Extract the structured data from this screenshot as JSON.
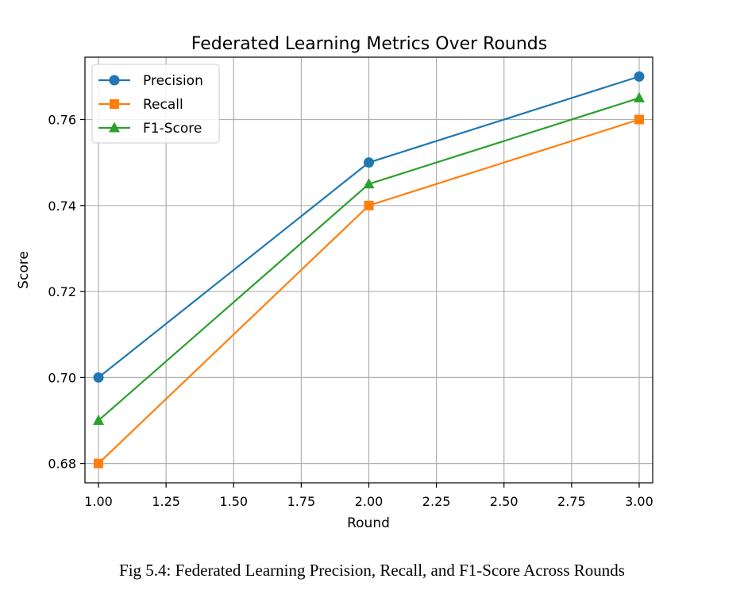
{
  "chart_data": {
    "type": "line",
    "title": "Federated Learning Metrics Over Rounds",
    "xlabel": "Round",
    "ylabel": "Score",
    "x": [
      1,
      2,
      3
    ],
    "xlim": [
      0.95,
      3.05
    ],
    "ylim": [
      0.6755,
      0.7745
    ],
    "xticks": [
      1.0,
      1.25,
      1.5,
      1.75,
      2.0,
      2.25,
      2.5,
      2.75,
      3.0
    ],
    "xtick_labels": [
      "1.00",
      "1.25",
      "1.50",
      "1.75",
      "2.00",
      "2.25",
      "2.50",
      "2.75",
      "3.00"
    ],
    "yticks": [
      0.68,
      0.7,
      0.72,
      0.74,
      0.76
    ],
    "ytick_labels": [
      "0.68",
      "0.70",
      "0.72",
      "0.74",
      "0.76"
    ],
    "grid": true,
    "legend_position": "top-left",
    "series": [
      {
        "name": "Precision",
        "values": [
          0.7,
          0.75,
          0.77
        ],
        "color": "#1f77b4",
        "marker": "circle"
      },
      {
        "name": "Recall",
        "values": [
          0.68,
          0.74,
          0.76
        ],
        "color": "#ff7f0e",
        "marker": "square"
      },
      {
        "name": "F1-Score",
        "values": [
          0.69,
          0.745,
          0.765
        ],
        "color": "#2ca02c",
        "marker": "triangle"
      }
    ]
  },
  "caption": "Fig 5.4: Federated Learning Precision, Recall, and F1-Score Across Rounds"
}
